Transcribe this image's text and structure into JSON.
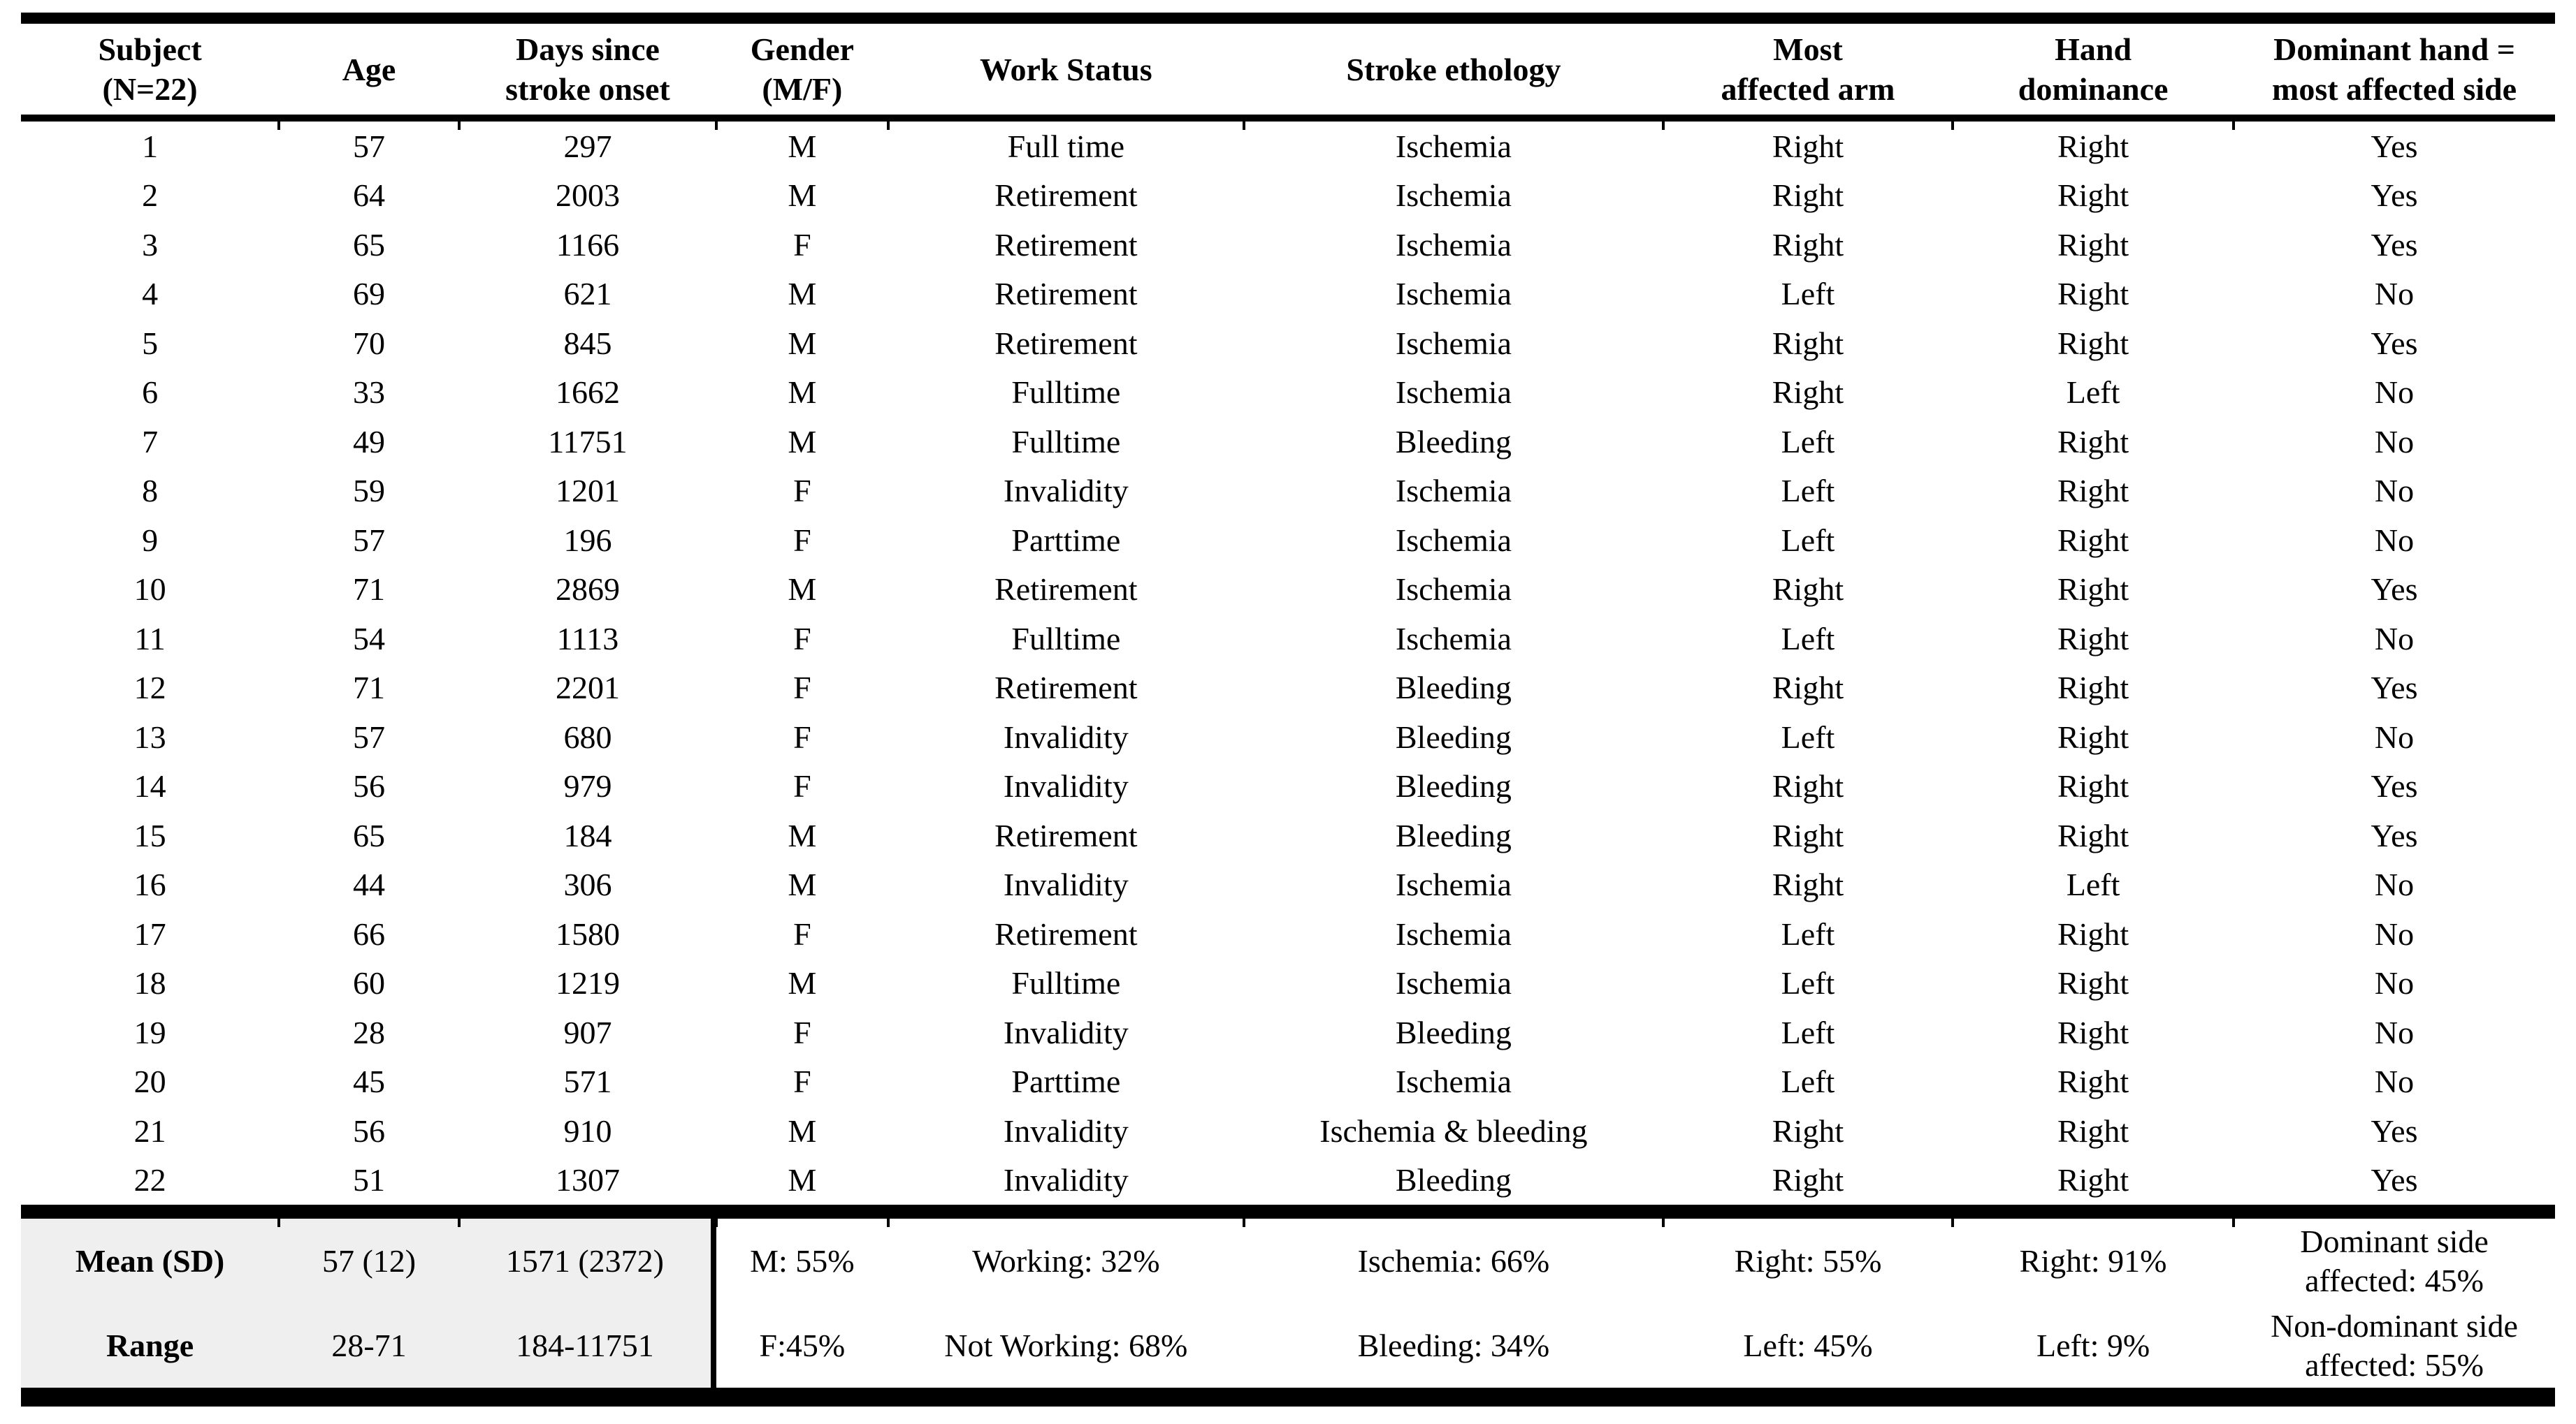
{
  "table": {
    "colors": {
      "text": "#000000",
      "rule": "#000000",
      "summary_shade": "#efefef",
      "background": "#ffffff"
    },
    "columns": [
      {
        "id": "subject",
        "label": "Subject\n(N=22)"
      },
      {
        "id": "age",
        "label": "Age"
      },
      {
        "id": "days",
        "label": "Days since\nstroke onset"
      },
      {
        "id": "gender",
        "label": "Gender\n(M/F)"
      },
      {
        "id": "work",
        "label": "Work Status"
      },
      {
        "id": "etiology",
        "label": "Stroke ethology"
      },
      {
        "id": "arm",
        "label": "Most\naffected arm"
      },
      {
        "id": "hand",
        "label": "Hand\ndominance"
      },
      {
        "id": "dominant",
        "label": "Dominant hand =\nmost affected side"
      }
    ],
    "rows": [
      [
        "1",
        "57",
        "297",
        "M",
        "Full time",
        "Ischemia",
        "Right",
        "Right",
        "Yes"
      ],
      [
        "2",
        "64",
        "2003",
        "M",
        "Retirement",
        "Ischemia",
        "Right",
        "Right",
        "Yes"
      ],
      [
        "3",
        "65",
        "1166",
        "F",
        "Retirement",
        "Ischemia",
        "Right",
        "Right",
        "Yes"
      ],
      [
        "4",
        "69",
        "621",
        "M",
        "Retirement",
        "Ischemia",
        "Left",
        "Right",
        "No"
      ],
      [
        "5",
        "70",
        "845",
        "M",
        "Retirement",
        "Ischemia",
        "Right",
        "Right",
        "Yes"
      ],
      [
        "6",
        "33",
        "1662",
        "M",
        "Fulltime",
        "Ischemia",
        "Right",
        "Left",
        "No"
      ],
      [
        "7",
        "49",
        "11751",
        "M",
        "Fulltime",
        "Bleeding",
        "Left",
        "Right",
        "No"
      ],
      [
        "8",
        "59",
        "1201",
        "F",
        "Invalidity",
        "Ischemia",
        "Left",
        "Right",
        "No"
      ],
      [
        "9",
        "57",
        "196",
        "F",
        "Parttime",
        "Ischemia",
        "Left",
        "Right",
        "No"
      ],
      [
        "10",
        "71",
        "2869",
        "M",
        "Retirement",
        "Ischemia",
        "Right",
        "Right",
        "Yes"
      ],
      [
        "11",
        "54",
        "1113",
        "F",
        "Fulltime",
        "Ischemia",
        "Left",
        "Right",
        "No"
      ],
      [
        "12",
        "71",
        "2201",
        "F",
        "Retirement",
        "Bleeding",
        "Right",
        "Right",
        "Yes"
      ],
      [
        "13",
        "57",
        "680",
        "F",
        "Invalidity",
        "Bleeding",
        "Left",
        "Right",
        "No"
      ],
      [
        "14",
        "56",
        "979",
        "F",
        "Invalidity",
        "Bleeding",
        "Right",
        "Right",
        "Yes"
      ],
      [
        "15",
        "65",
        "184",
        "M",
        "Retirement",
        "Bleeding",
        "Right",
        "Right",
        "Yes"
      ],
      [
        "16",
        "44",
        "306",
        "M",
        "Invalidity",
        "Ischemia",
        "Right",
        "Left",
        "No"
      ],
      [
        "17",
        "66",
        "1580",
        "F",
        "Retirement",
        "Ischemia",
        "Left",
        "Right",
        "No"
      ],
      [
        "18",
        "60",
        "1219",
        "M",
        "Fulltime",
        "Ischemia",
        "Left",
        "Right",
        "No"
      ],
      [
        "19",
        "28",
        "907",
        "F",
        "Invalidity",
        "Bleeding",
        "Left",
        "Right",
        "No"
      ],
      [
        "20",
        "45",
        "571",
        "F",
        "Parttime",
        "Ischemia",
        "Left",
        "Right",
        "No"
      ],
      [
        "21",
        "56",
        "910",
        "M",
        "Invalidity",
        "Ischemia & bleeding",
        "Right",
        "Right",
        "Yes"
      ],
      [
        "22",
        "51",
        "1307",
        "M",
        "Invalidity",
        "Bleeding",
        "Right",
        "Right",
        "Yes"
      ]
    ],
    "summary_rows": [
      [
        "Mean (SD)",
        "57 (12)",
        "1571 (2372)",
        "M: 55%",
        "Working: 32%",
        "Ischemia: 66%",
        "Right: 55%",
        "Right: 91%",
        "Dominant side\naffected: 45%"
      ],
      [
        "Range",
        "28-71",
        "184-11751",
        "F:45%",
        "Not Working: 68%",
        "Bleeding: 34%",
        "Left: 45%",
        "Left: 9%",
        "Non-dominant side\naffected: 55%"
      ]
    ]
  }
}
